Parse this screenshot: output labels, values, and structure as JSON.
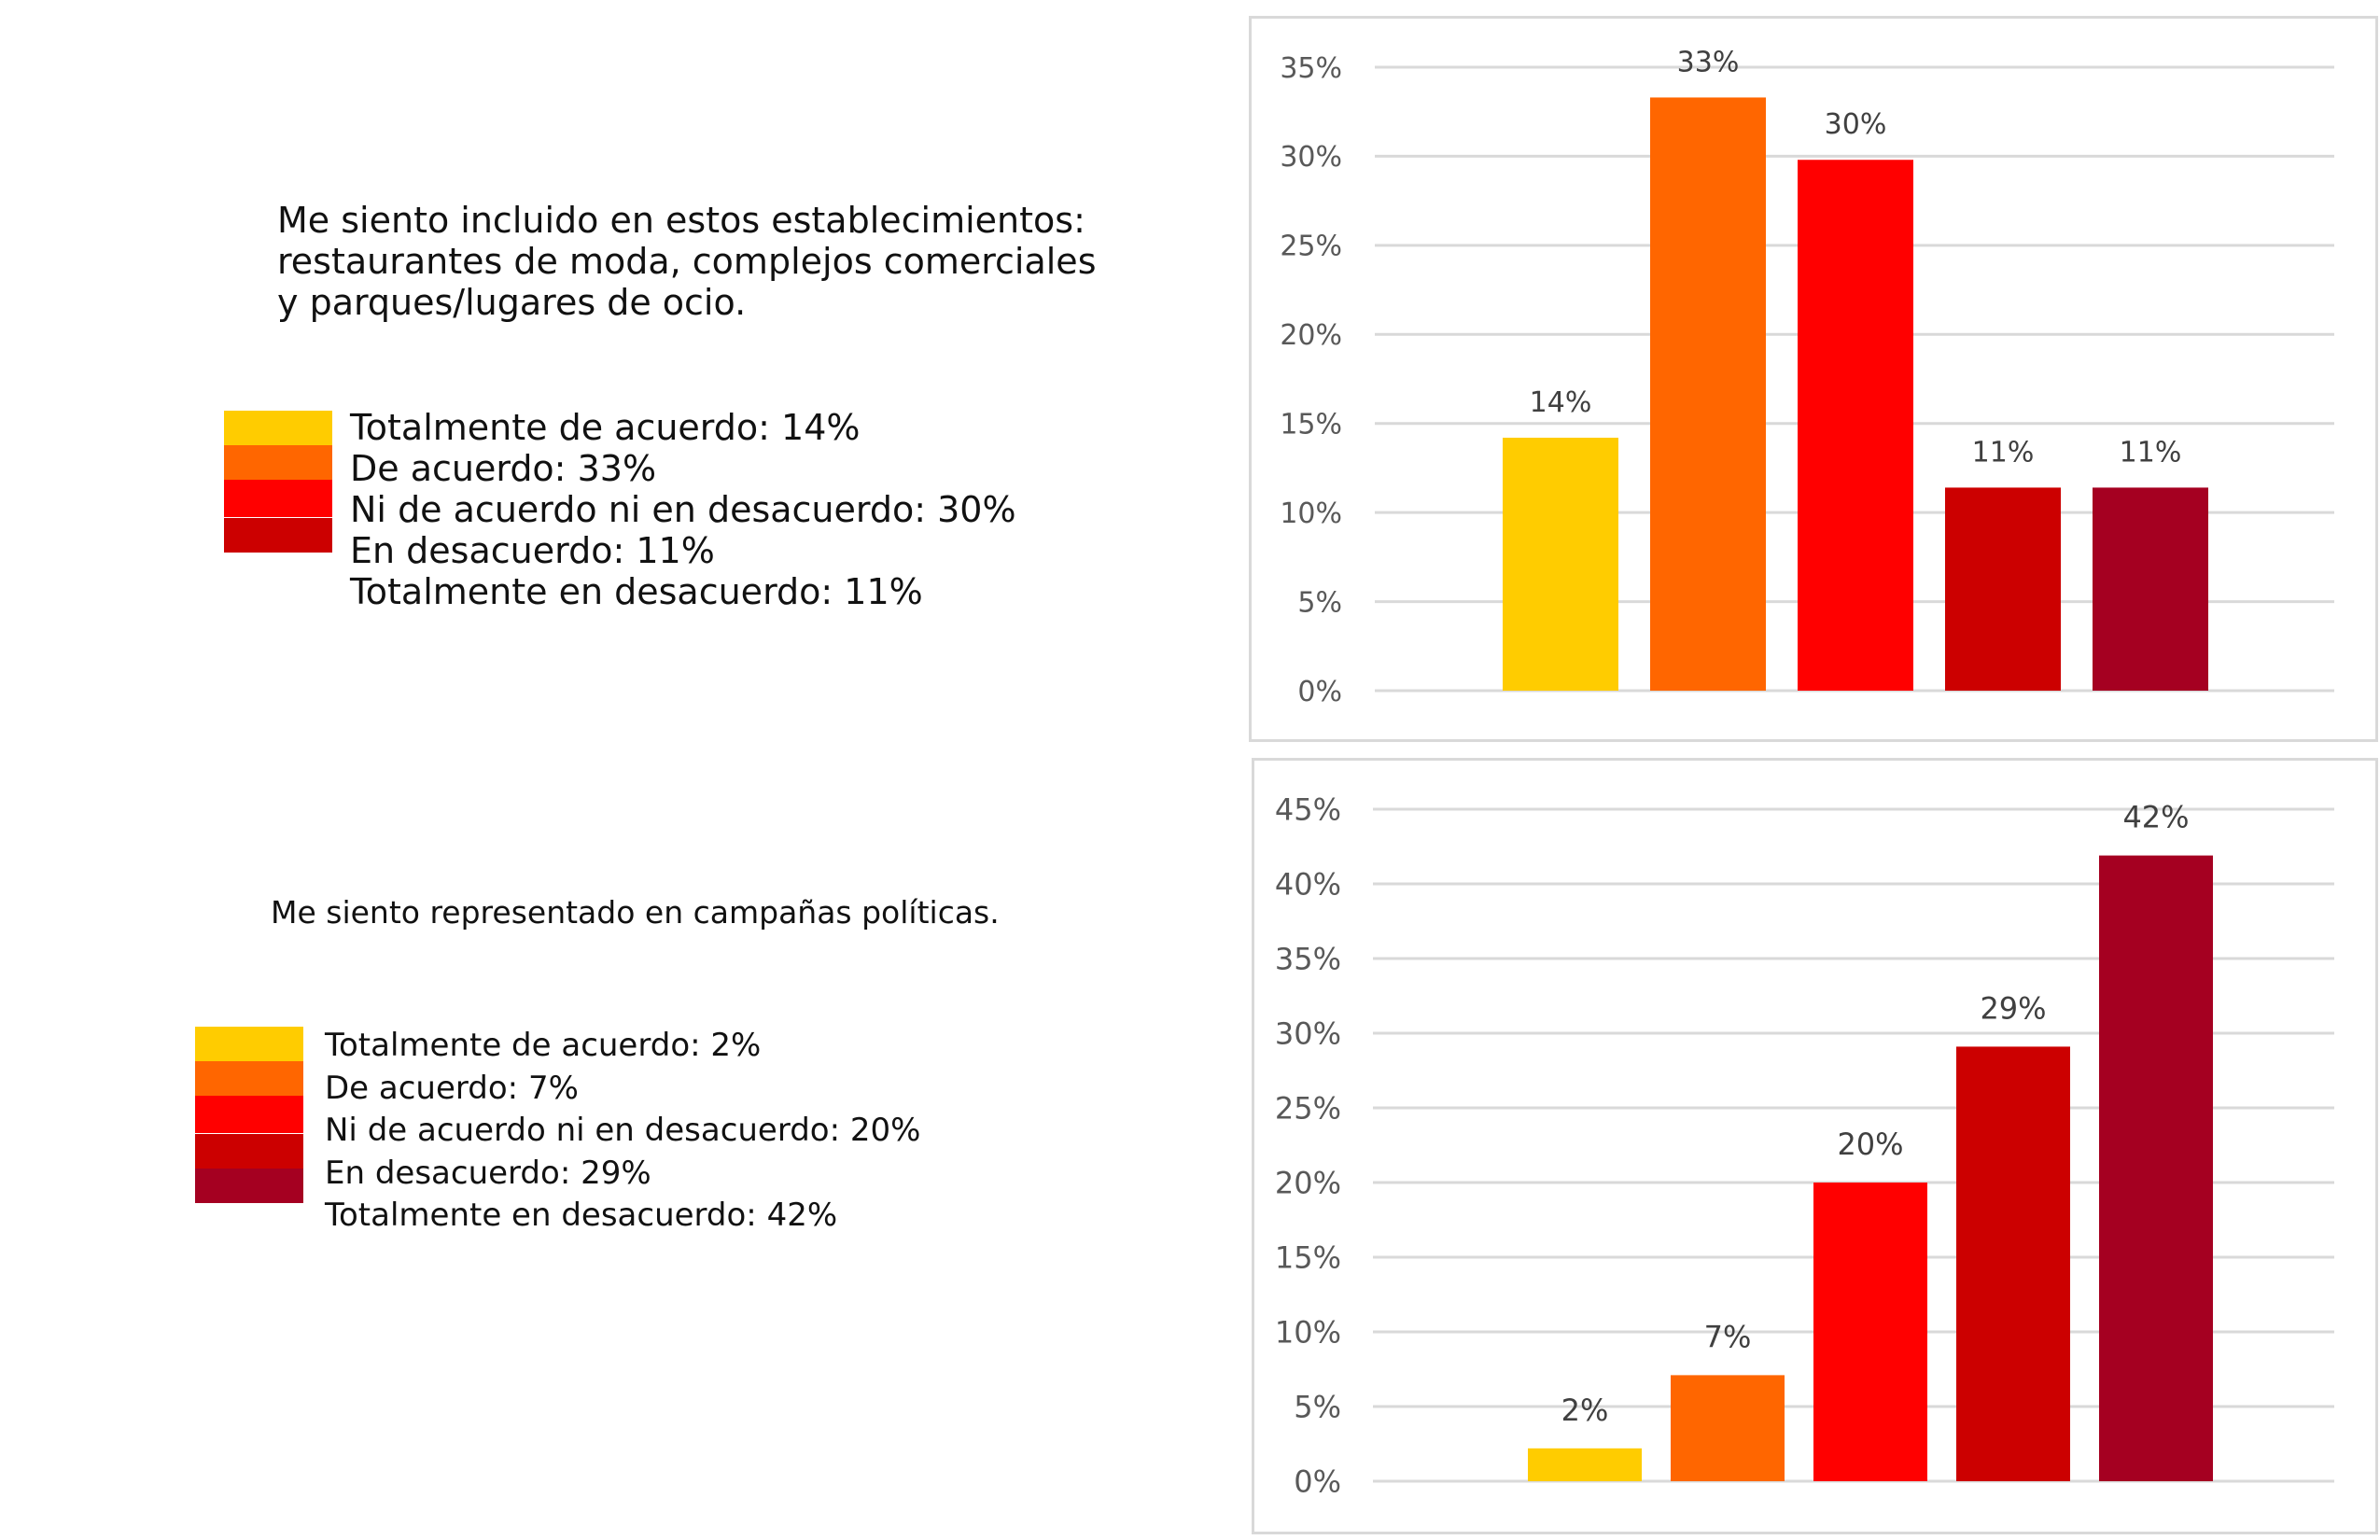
{
  "charts": [
    {
      "question": "Me siento incluido en estos establecimientos: restaurantes de moda, complejos comerciales y parques/lugares de ocio.",
      "question_lines": [
        "Me siento incluido en estos establecimientos:",
        "restaurantes de moda, complejos comerciales",
        "y parques/lugares de ocio."
      ],
      "legend": [
        {
          "label": "Totalmente de acuerdo:",
          "value": "14%",
          "color": "#FFCC00"
        },
        {
          "label": "De acuerdo:",
          "value": "33%",
          "color": "#FF6600"
        },
        {
          "label": "Ni de acuerdo ni en desacuerdo:",
          "value": "30%",
          "color": "#FF0000"
        },
        {
          "label": "En desacuerdo:",
          "value": "11%",
          "color": "#CC0000"
        },
        {
          "label": "Totalmente en desacuerdo:",
          "value": "11%",
          "color": "#A50021"
        }
      ]
    },
    {
      "question": "Me siento representado en campañas políticas.",
      "question_lines": [
        "Me siento representado en campañas políticas."
      ],
      "legend": [
        {
          "label": "Totalmente de acuerdo:",
          "value": "2%",
          "color": "#FFCC00"
        },
        {
          "label": "De acuerdo:",
          "value": "7%",
          "color": "#FF6600"
        },
        {
          "label": "Ni de acuerdo ni en desacuerdo:",
          "value": "20%",
          "color": "#FF0000"
        },
        {
          "label": "En desacuerdo:",
          "value": "29%",
          "color": "#CC0000"
        },
        {
          "label": "Totalmente en desacuerdo:",
          "value": "42%",
          "color": "#A50021"
        }
      ]
    }
  ],
  "chart_data": [
    {
      "type": "bar",
      "title": "Me siento incluido en estos establecimientos: restaurantes de moda, complejos comerciales y parques/lugares de ocio.",
      "categories": [
        "Totalmente de acuerdo",
        "De acuerdo",
        "Ni de acuerdo ni en desacuerdo",
        "En desacuerdo",
        "Totalmente en desacuerdo"
      ],
      "values": [
        14.2,
        33.3,
        29.8,
        11.4,
        11.4
      ],
      "data_labels": [
        "14%",
        "33%",
        "30%",
        "11%",
        "11%"
      ],
      "colors": [
        "#FFCC00",
        "#FF6600",
        "#FF0000",
        "#CC0000",
        "#A50021"
      ],
      "ylim": [
        0,
        35
      ],
      "yticks": [
        0,
        5,
        10,
        15,
        20,
        25,
        30,
        35
      ],
      "ytick_labels": [
        "0%",
        "5%",
        "10%",
        "15%",
        "20%",
        "25%",
        "30%",
        "35%"
      ],
      "xlabel": "",
      "ylabel": "",
      "grid": true,
      "legend": "left"
    },
    {
      "type": "bar",
      "title": "Me siento representado en campañas políticas.",
      "categories": [
        "Totalmente de acuerdo",
        "De acuerdo",
        "Ni de acuerdo ni en desacuerdo",
        "En desacuerdo",
        "Totalmente en desacuerdo"
      ],
      "values": [
        2.2,
        7.1,
        20.0,
        29.1,
        41.9
      ],
      "data_labels": [
        "2%",
        "7%",
        "20%",
        "29%",
        "42%"
      ],
      "colors": [
        "#FFCC00",
        "#FF6600",
        "#FF0000",
        "#CC0000",
        "#A50021"
      ],
      "ylim": [
        0,
        45
      ],
      "yticks": [
        0,
        5,
        10,
        15,
        20,
        25,
        30,
        35,
        40,
        45
      ],
      "ytick_labels": [
        "0%",
        "5%",
        "10%",
        "15%",
        "20%",
        "25%",
        "30%",
        "35%",
        "40%",
        "45%"
      ],
      "xlabel": "",
      "ylabel": "",
      "grid": true,
      "legend": "left"
    }
  ]
}
